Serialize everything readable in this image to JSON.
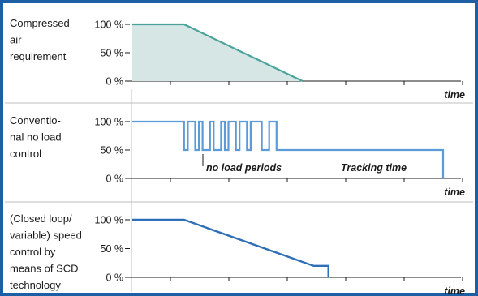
{
  "colors": {
    "border": "#1d5fa5",
    "panel1_line": "#4aa39a",
    "panel1_fill": "#d5e6e4",
    "panel2_line": "#5b9bd8",
    "panel3_line": "#2f6fb8",
    "axis": "#1a1a1a",
    "grid": "#bfbfbf"
  },
  "chart_data": [
    {
      "type": "area",
      "ylabel_lines": [
        "Compressed",
        "air",
        "requirement"
      ],
      "y_ticks": [
        "100 %",
        "50 %",
        "0 %"
      ],
      "xlabel": "time",
      "series": [
        {
          "x": [
            0,
            14,
            46
          ],
          "values": [
            100,
            100,
            0
          ]
        }
      ]
    },
    {
      "type": "line",
      "ylabel_lines": [
        "Conventio-",
        "nal no load",
        "control"
      ],
      "y_ticks": [
        "100 %",
        "50 %",
        "0 %"
      ],
      "xlabel": "time",
      "annotations": [
        "no load periods",
        "Tracking time"
      ],
      "series": [
        {
          "x": [
            0,
            14,
            14,
            15,
            15,
            17,
            17,
            18,
            18,
            19,
            19,
            21,
            21,
            22,
            22,
            24,
            24,
            25,
            25,
            26,
            26,
            28,
            28,
            29,
            29,
            31,
            31,
            32,
            32,
            35,
            35,
            37,
            37,
            39,
            39,
            43,
            43,
            84,
            84
          ],
          "values": [
            100,
            100,
            50,
            50,
            100,
            100,
            50,
            50,
            100,
            100,
            50,
            50,
            100,
            100,
            50,
            50,
            100,
            100,
            50,
            50,
            100,
            100,
            50,
            50,
            100,
            100,
            50,
            50,
            100,
            100,
            50,
            50,
            100,
            100,
            50,
            50,
            50,
            50,
            0
          ]
        }
      ]
    },
    {
      "type": "line",
      "ylabel_lines": [
        "(Closed loop/",
        "variable) speed",
        "control by",
        "means of SCD",
        "technology"
      ],
      "y_ticks": [
        "100 %",
        "50 %",
        "0 %"
      ],
      "xlabel": "time",
      "series": [
        {
          "x": [
            0,
            14,
            49,
            53,
            53
          ],
          "values": [
            100,
            100,
            20,
            20,
            0
          ]
        }
      ]
    }
  ]
}
